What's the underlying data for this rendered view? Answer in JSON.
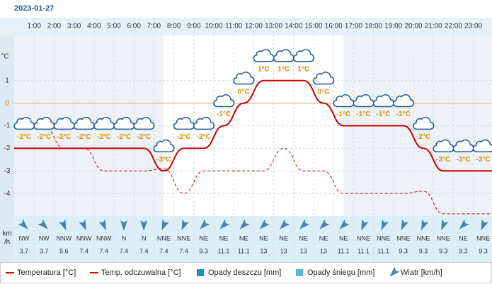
{
  "title": "2023-01-27",
  "chart_data": {
    "type": "line",
    "categories": [
      null,
      "1:00",
      "2:00",
      "3:00",
      "4:00",
      "5:00",
      "6:00",
      "7:00",
      "8:00",
      "9:00",
      "10:00",
      "11:00",
      "12:00",
      "13:00",
      "14:00",
      "15:00",
      "16:00",
      "17:00",
      "18:00",
      "19:00",
      "20:00",
      "21:00",
      "22:00",
      "23:00"
    ],
    "y_label": "°C",
    "ylim": [
      -5,
      3
    ],
    "yticks": [
      -4,
      -3,
      -2,
      -1,
      0,
      1
    ],
    "grid": true,
    "series": [
      {
        "name": "Temperatura [°C]",
        "color": "#cc0000",
        "values": [
          -2,
          -2,
          -2,
          -2,
          -2,
          -2,
          -2,
          -3,
          -2,
          -2,
          -1,
          0,
          1,
          1,
          1,
          0,
          -1,
          -1,
          -1,
          -1,
          -2,
          -3,
          -3,
          -3
        ],
        "value_labels": [
          "-2°C",
          "-2°C",
          "-2°C",
          "-2°C",
          "-2°C",
          "-2°C",
          "-2°C",
          "-3°C",
          "-2°C",
          "-2°C",
          "-1°C",
          "0°C",
          "1°C",
          "1°C",
          "1°C",
          "0°C",
          "-1°C",
          "-1°C",
          "-1°C",
          "-1°C",
          "-2°C",
          "-3°C",
          "-3°C",
          "-3°C"
        ]
      },
      {
        "name": "Temp. odczuwalna [°C]",
        "color": "#cc0000",
        "dashed": true,
        "values": [
          -1,
          -1,
          -2,
          -2,
          -3,
          -3,
          -3,
          -2.9,
          -4,
          -3,
          -3,
          -3,
          -3,
          -2,
          -3,
          -3,
          -4,
          -4,
          -4,
          -4,
          -3.9,
          -4.9,
          -4.9,
          -4.9
        ]
      }
    ],
    "extra_legend": [
      {
        "name": "Opady deszczu [mm]",
        "color": "#1a8fc2"
      },
      {
        "name": "Opady śniegu [mm]",
        "color": "#5bb8d8"
      }
    ],
    "wind": {
      "name": "Wiatr [km/h]",
      "unit": [
        "km",
        "/h"
      ],
      "directions": [
        "NW",
        "NW",
        "NNW",
        "NNW",
        "NNW",
        "N",
        "N",
        "NNE",
        "NNE",
        "NE",
        "NE",
        "NE",
        "NE",
        "NE",
        "NE",
        "NE",
        "NE",
        "NNE",
        "NNE",
        "NNE",
        "NNE",
        "NNE",
        "NE",
        "NNE"
      ],
      "speeds": [
        3.7,
        3.7,
        5.6,
        7.4,
        7.4,
        7.4,
        7.4,
        7.4,
        7.4,
        9.3,
        11.1,
        11.1,
        13,
        13,
        13,
        13,
        11.1,
        11.1,
        11.1,
        9.3,
        9.3,
        9.3,
        9.3,
        9.3
      ],
      "color": "#4a7fb0"
    }
  }
}
